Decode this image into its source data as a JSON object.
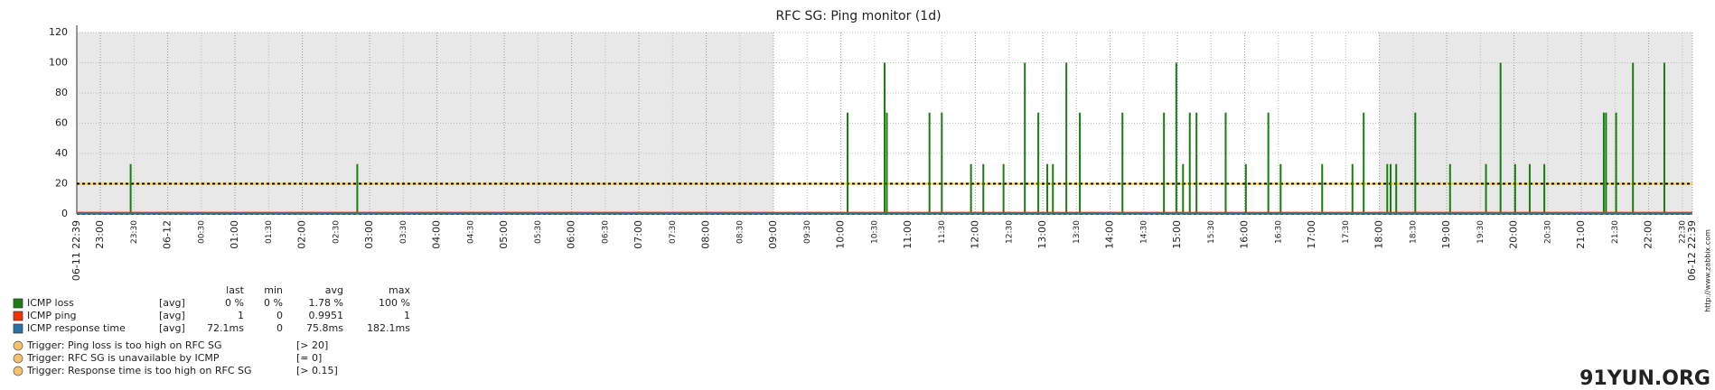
{
  "chart_data": {
    "type": "line",
    "title": "RFC SG: Ping monitor (1d)",
    "xlim": [
      "06-11 22:39",
      "06-12 22:39"
    ],
    "ylim": [
      0,
      120
    ],
    "yticks": [
      0,
      20,
      40,
      60,
      80,
      100,
      120
    ],
    "grid": true,
    "working_time": [
      "06-12 09:00",
      "06-12 18:00"
    ],
    "xticks": [
      {
        "value": "06-11 22:39",
        "label": "06-11 22:39"
      },
      {
        "value": "06-11 23:00",
        "label": "23:00"
      },
      {
        "value": "06-11 23:30",
        "label": "23:30"
      },
      {
        "value": "06-12 00:00",
        "label": "06-12"
      },
      {
        "value": "06-12 00:30",
        "label": "00:30"
      },
      {
        "value": "06-12 01:00",
        "label": "01:00"
      },
      {
        "value": "06-12 01:30",
        "label": "01:30"
      },
      {
        "value": "06-12 02:00",
        "label": "02:00"
      },
      {
        "value": "06-12 02:30",
        "label": "02:30"
      },
      {
        "value": "06-12 03:00",
        "label": "03:00"
      },
      {
        "value": "06-12 03:30",
        "label": "03:30"
      },
      {
        "value": "06-12 04:00",
        "label": "04:00"
      },
      {
        "value": "06-12 04:30",
        "label": "04:30"
      },
      {
        "value": "06-12 05:00",
        "label": "05:00"
      },
      {
        "value": "06-12 05:30",
        "label": "05:30"
      },
      {
        "value": "06-12 06:00",
        "label": "06:00"
      },
      {
        "value": "06-12 06:30",
        "label": "06:30"
      },
      {
        "value": "06-12 07:00",
        "label": "07:00"
      },
      {
        "value": "06-12 07:30",
        "label": "07:30"
      },
      {
        "value": "06-12 08:00",
        "label": "08:00"
      },
      {
        "value": "06-12 08:30",
        "label": "08:30"
      },
      {
        "value": "06-12 09:00",
        "label": "09:00"
      },
      {
        "value": "06-12 09:30",
        "label": "09:30"
      },
      {
        "value": "06-12 10:00",
        "label": "10:00"
      },
      {
        "value": "06-12 10:30",
        "label": "10:30"
      },
      {
        "value": "06-12 11:00",
        "label": "11:00"
      },
      {
        "value": "06-12 11:30",
        "label": "11:30"
      },
      {
        "value": "06-12 12:00",
        "label": "12:00"
      },
      {
        "value": "06-12 12:30",
        "label": "12:30"
      },
      {
        "value": "06-12 13:00",
        "label": "13:00"
      },
      {
        "value": "06-12 13:30",
        "label": "13:30"
      },
      {
        "value": "06-12 14:00",
        "label": "14:00"
      },
      {
        "value": "06-12 14:30",
        "label": "14:30"
      },
      {
        "value": "06-12 15:00",
        "label": "15:00"
      },
      {
        "value": "06-12 15:30",
        "label": "15:30"
      },
      {
        "value": "06-12 16:00",
        "label": "16:00"
      },
      {
        "value": "06-12 16:30",
        "label": "16:30"
      },
      {
        "value": "06-12 17:00",
        "label": "17:00"
      },
      {
        "value": "06-12 17:30",
        "label": "17:30"
      },
      {
        "value": "06-12 18:00",
        "label": "18:00"
      },
      {
        "value": "06-12 18:30",
        "label": "18:30"
      },
      {
        "value": "06-12 19:00",
        "label": "19:00"
      },
      {
        "value": "06-12 19:30",
        "label": "19:30"
      },
      {
        "value": "06-12 20:00",
        "label": "20:00"
      },
      {
        "value": "06-12 20:30",
        "label": "20:30"
      },
      {
        "value": "06-12 21:00",
        "label": "21:00"
      },
      {
        "value": "06-12 21:30",
        "label": "21:30"
      },
      {
        "value": "06-12 22:00",
        "label": "22:00"
      },
      {
        "value": "06-12 22:30",
        "label": "22:30"
      },
      {
        "value": "06-12 22:39",
        "label": "06-12 22:39"
      }
    ],
    "legend_columns": [
      "last",
      "min",
      "avg",
      "max"
    ],
    "series": [
      {
        "name": "ICMP loss",
        "color": "#1a7c11",
        "draw": "spikes",
        "function": "[avg]",
        "stats": [
          "0 %",
          "0 %",
          "1.78 %",
          "100 %"
        ],
        "x": [
          "06-11 23:27",
          "06-12 02:49",
          "06-12 10:06",
          "06-12 10:39",
          "06-12 10:41",
          "06-12 11:19",
          "06-12 11:30",
          "06-12 11:56",
          "06-12 12:07",
          "06-12 12:25",
          "06-12 12:44",
          "06-12 12:56",
          "06-12 13:04",
          "06-12 13:09",
          "06-12 13:21",
          "06-12 13:33",
          "06-12 14:11",
          "06-12 14:48",
          "06-12 14:59",
          "06-12 15:05",
          "06-12 15:11",
          "06-12 15:17",
          "06-12 15:43",
          "06-12 16:01",
          "06-12 16:21",
          "06-12 16:32",
          "06-12 17:09",
          "06-12 17:36",
          "06-12 17:46",
          "06-12 18:07",
          "06-12 18:10",
          "06-12 18:15",
          "06-12 18:32",
          "06-12 19:03",
          "06-12 19:35",
          "06-12 19:48",
          "06-12 20:01",
          "06-12 20:14",
          "06-12 20:27",
          "06-12 21:20",
          "06-12 21:22",
          "06-12 21:31",
          "06-12 21:46",
          "06-12 22:14"
        ],
        "values": [
          33,
          33,
          67,
          100,
          67,
          67,
          67,
          33,
          33,
          33,
          100,
          67,
          33,
          33,
          100,
          67,
          67,
          67,
          100,
          33,
          67,
          67,
          67,
          33,
          67,
          33,
          33,
          33,
          67,
          33,
          33,
          33,
          67,
          33,
          33,
          100,
          33,
          33,
          33,
          67,
          67,
          67,
          100,
          100
        ]
      },
      {
        "name": "ICMP ping",
        "color": "#f63100",
        "draw": "line",
        "function": "[avg]",
        "stats": [
          "1",
          "0",
          "0.9951",
          "1"
        ],
        "x": [
          "06-11 22:39",
          "06-12 22:39"
        ],
        "values": [
          1,
          1
        ]
      },
      {
        "name": "ICMP response time",
        "color": "#2774a4",
        "draw": "line",
        "function": "[avg]",
        "stats": [
          "72.1ms",
          "0",
          "75.8ms",
          "182.1ms"
        ],
        "x": [
          "06-11 22:39",
          "06-12 22:39"
        ],
        "values": [
          0.0758,
          0.0758
        ]
      }
    ],
    "triggers": [
      {
        "name": "Trigger: Ping loss is too high on RFC SG",
        "condition": "[> 20]",
        "value": 20,
        "color": "#ffc800"
      },
      {
        "name": "Trigger: RFC SG is unavailable by ICMP",
        "condition": "[= 0]",
        "value": 0,
        "color": "#ffc800"
      },
      {
        "name": "Trigger: Response time is too high on RFC SG",
        "condition": "[> 0.15]",
        "value": 0.15,
        "color": "#ffc800"
      }
    ],
    "credit": "http://www.zabbix.com",
    "watermark": "91YUN.ORG"
  }
}
